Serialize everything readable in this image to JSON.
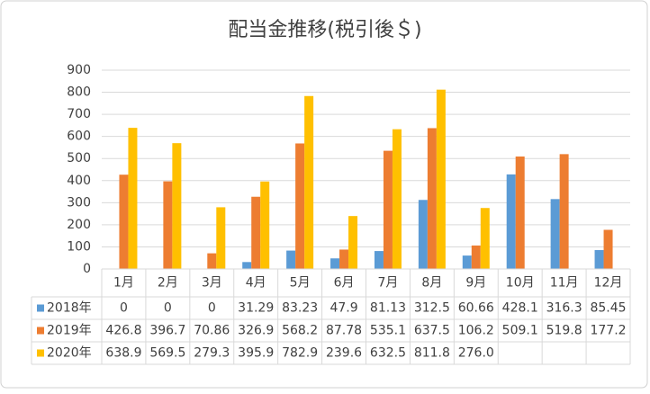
{
  "chart_data": {
    "type": "bar",
    "title": "配当金推移(税引後＄)",
    "categories": [
      "1月",
      "2月",
      "3月",
      "4月",
      "5月",
      "6月",
      "7月",
      "8月",
      "9月",
      "10月",
      "11月",
      "12月"
    ],
    "series": [
      {
        "name": "2018年",
        "color": "#5b9bd5",
        "values": [
          0,
          0,
          0,
          31.29,
          83.23,
          47.9,
          81.13,
          312.5,
          60.66,
          428.1,
          316.3,
          85.45
        ]
      },
      {
        "name": "2019年",
        "color": "#ed7d31",
        "values": [
          426.8,
          396.7,
          70.86,
          326.9,
          568.2,
          87.78,
          535.1,
          637.5,
          106.2,
          509.1,
          519.8,
          177.2
        ]
      },
      {
        "name": "2020年",
        "color": "#ffc000",
        "values": [
          638.9,
          569.5,
          279.3,
          395.9,
          782.9,
          239.6,
          632.5,
          811.8,
          276.0,
          null,
          null,
          null
        ],
        "value_labels": [
          "638.9",
          "569.5",
          "279.3",
          "395.9",
          "782.9",
          "239.6",
          "632.5",
          "811.8",
          "276.0",
          null,
          null,
          null
        ]
      }
    ],
    "ylim": [
      0,
      900
    ],
    "yticks": [
      0,
      100,
      200,
      300,
      400,
      500,
      600,
      700,
      800,
      900
    ],
    "grid": true
  }
}
